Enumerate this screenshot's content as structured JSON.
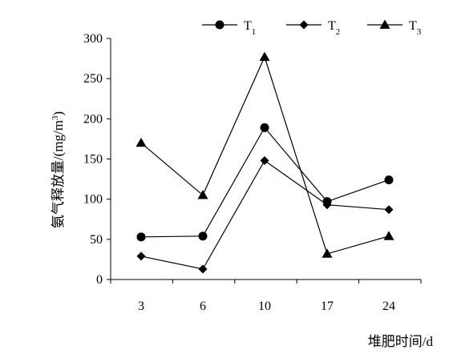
{
  "chart_data": {
    "type": "line",
    "title": "",
    "xlabel": "堆肥时间/d",
    "ylabel_main": "氨气释放量/(mg/m",
    "ylabel_sup": "3",
    "ylabel_tail": ")",
    "categories": [
      "3",
      "6",
      "10",
      "17",
      "24"
    ],
    "ylim": [
      0,
      300
    ],
    "yticks": [
      "0",
      "50",
      "100",
      "150",
      "200",
      "250",
      "300"
    ],
    "legend_position": "top",
    "grid": false,
    "series": [
      {
        "name_main": "T",
        "name_sub": "1",
        "marker": "circle",
        "values": [
          53,
          54,
          189,
          97,
          124
        ]
      },
      {
        "name_main": "T",
        "name_sub": "2",
        "marker": "diamond",
        "values": [
          29,
          13,
          148,
          93,
          87
        ]
      },
      {
        "name_main": "T",
        "name_sub": "3",
        "marker": "triangle",
        "values": [
          170,
          105,
          277,
          32,
          54
        ]
      }
    ],
    "colors": {
      "line": "#000000"
    }
  }
}
